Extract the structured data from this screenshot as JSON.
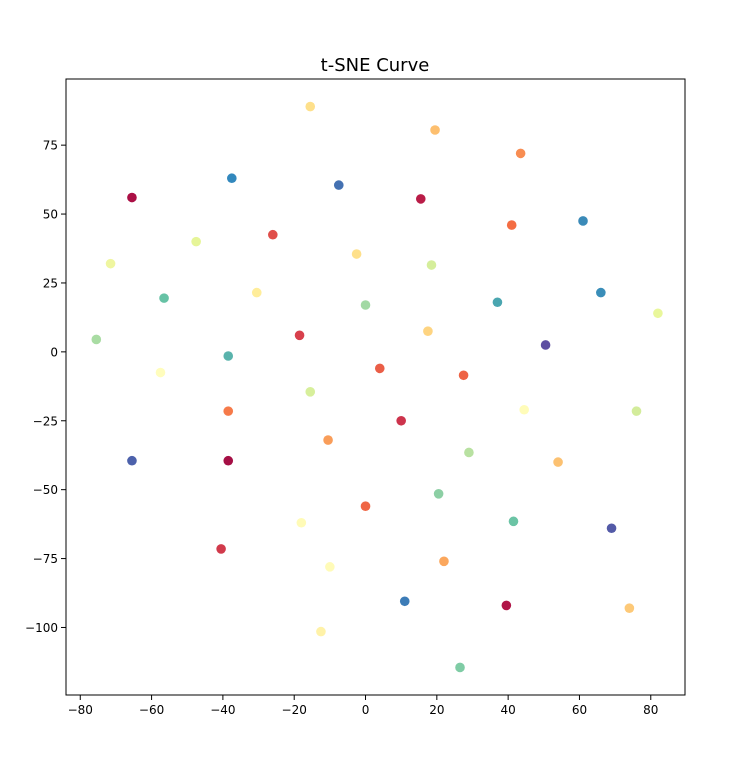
{
  "chart_data": {
    "type": "scatter",
    "title": "t-SNE Curve",
    "xlabel": "",
    "ylabel": "",
    "xlim": [
      -84,
      89.6
    ],
    "ylim": [
      -124.5,
      99
    ],
    "xticks": [
      -80,
      -60,
      -40,
      -20,
      0,
      20,
      40,
      60,
      80
    ],
    "yticks": [
      75,
      50,
      25,
      0,
      -25,
      -50,
      -75,
      -100
    ],
    "grid": false,
    "points": [
      {
        "x": -15.5,
        "y": 89,
        "color": "#fee08b"
      },
      {
        "x": 19.5,
        "y": 80.5,
        "color": "#fdbf6f"
      },
      {
        "x": 43.5,
        "y": 72,
        "color": "#f88d52"
      },
      {
        "x": -37.5,
        "y": 63,
        "color": "#3288bd"
      },
      {
        "x": -7.5,
        "y": 60.5,
        "color": "#4471b2"
      },
      {
        "x": -65.5,
        "y": 56,
        "color": "#ab0f45"
      },
      {
        "x": 15.5,
        "y": 55.5,
        "color": "#b91c47"
      },
      {
        "x": 41,
        "y": 46,
        "color": "#f46d43"
      },
      {
        "x": 61,
        "y": 47.5,
        "color": "#3a8ab8"
      },
      {
        "x": -26,
        "y": 42.5,
        "color": "#e04e4a"
      },
      {
        "x": -47.5,
        "y": 40,
        "color": "#e6f598"
      },
      {
        "x": -2.5,
        "y": 35.5,
        "color": "#fee08b"
      },
      {
        "x": -71.5,
        "y": 32,
        "color": "#eff6a0"
      },
      {
        "x": 18.5,
        "y": 31.5,
        "color": "#d5ee9b"
      },
      {
        "x": -30.5,
        "y": 21.5,
        "color": "#ffed9a"
      },
      {
        "x": -56.5,
        "y": 19.5,
        "color": "#66c2a5"
      },
      {
        "x": 37,
        "y": 18,
        "color": "#4aa6b0"
      },
      {
        "x": 66,
        "y": 21.5,
        "color": "#3a8eb9"
      },
      {
        "x": 0,
        "y": 17,
        "color": "#a2d9a4"
      },
      {
        "x": 82,
        "y": 14,
        "color": "#e9f79b"
      },
      {
        "x": 17.5,
        "y": 7.5,
        "color": "#fed481"
      },
      {
        "x": -18.5,
        "y": 6,
        "color": "#d8404c"
      },
      {
        "x": -75.5,
        "y": 4.5,
        "color": "#a9dca3"
      },
      {
        "x": 50.5,
        "y": 2.5,
        "color": "#5e4fa2"
      },
      {
        "x": -38.5,
        "y": -1.5,
        "color": "#59b3ac"
      },
      {
        "x": -57.5,
        "y": -7.5,
        "color": "#fffdbd"
      },
      {
        "x": 4,
        "y": -6,
        "color": "#ea5e47"
      },
      {
        "x": 27.5,
        "y": -8.5,
        "color": "#ee6345"
      },
      {
        "x": -15.5,
        "y": -14.5,
        "color": "#d7ef9b"
      },
      {
        "x": -38.5,
        "y": -21.5,
        "color": "#f67a49"
      },
      {
        "x": 44.5,
        "y": -21,
        "color": "#fffcb9"
      },
      {
        "x": 76,
        "y": -21.5,
        "color": "#d3ec9b"
      },
      {
        "x": 10,
        "y": -25,
        "color": "#cd334c"
      },
      {
        "x": -10.5,
        "y": -32,
        "color": "#f99d59"
      },
      {
        "x": 29,
        "y": -36.5,
        "color": "#b8e1a1"
      },
      {
        "x": -65.5,
        "y": -39.5,
        "color": "#4c61ab"
      },
      {
        "x": -38.5,
        "y": -39.5,
        "color": "#a50f45"
      },
      {
        "x": 54,
        "y": -40,
        "color": "#fcc171"
      },
      {
        "x": 20.5,
        "y": -51.5,
        "color": "#8ccfa4"
      },
      {
        "x": 0,
        "y": -56,
        "color": "#ef6645"
      },
      {
        "x": -18,
        "y": -62,
        "color": "#fffbb7"
      },
      {
        "x": 41.5,
        "y": -61.5,
        "color": "#6bc4a5"
      },
      {
        "x": 69,
        "y": -64,
        "color": "#535aa7"
      },
      {
        "x": -40.5,
        "y": -71.5,
        "color": "#d13a4b"
      },
      {
        "x": 22,
        "y": -76,
        "color": "#fba75d"
      },
      {
        "x": -10,
        "y": -78,
        "color": "#fffbb8"
      },
      {
        "x": 11,
        "y": -90.5,
        "color": "#3c7cb7"
      },
      {
        "x": 39.5,
        "y": -92,
        "color": "#b01547"
      },
      {
        "x": 74,
        "y": -93,
        "color": "#fdc978"
      },
      {
        "x": -12.5,
        "y": -101.5,
        "color": "#fff2a8"
      },
      {
        "x": 26.5,
        "y": -114.5,
        "color": "#7fcca5"
      }
    ]
  }
}
